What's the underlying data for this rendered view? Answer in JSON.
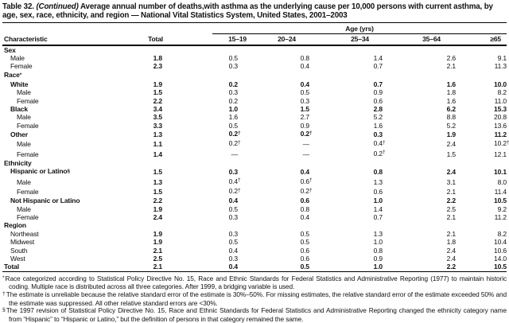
{
  "title": {
    "prefix": "Table 32.",
    "continued": "(Continued)",
    "text": "Average annual number of deaths,with asthma as the underlying cause per 10,000 persons with current asthma, by age, sex, race, ethnicity, and region — National Vital Statistics System, United States, 2001–2003"
  },
  "table": {
    "header": {
      "characteristic": "Characteristic",
      "total": "Total",
      "age_span": "Age (yrs)",
      "ages": [
        "15–19",
        "20–24",
        "25–34",
        "35–64",
        "≥65"
      ]
    },
    "rows": [
      {
        "label": "Sex",
        "indent": 0,
        "section": true
      },
      {
        "label": "Male",
        "indent": 1,
        "values": [
          "1.8",
          "0.5",
          "0.8",
          "1.4",
          "2.6",
          "9.1"
        ]
      },
      {
        "label": "Female",
        "indent": 1,
        "values": [
          "2.3",
          "0.3",
          "0.4",
          "0.7",
          "2.1",
          "11.3"
        ]
      },
      {
        "label": "Race",
        "sup": "*",
        "indent": 0,
        "section": true
      },
      {
        "label": "White",
        "indent": 1,
        "bold": true,
        "values": [
          "1.9",
          "0.2",
          "0.4",
          "0.7",
          "1.6",
          "10.0"
        ]
      },
      {
        "label": "Male",
        "indent": 2,
        "values": [
          "1.5",
          "0.3",
          "0.5",
          "0.9",
          "1.8",
          "8.2"
        ]
      },
      {
        "label": "Female",
        "indent": 2,
        "values": [
          "2.2",
          "0.2",
          "0.3",
          "0.6",
          "1.6",
          "11.0"
        ]
      },
      {
        "label": "Black",
        "indent": 1,
        "bold": true,
        "values": [
          "3.4",
          "1.0",
          "1.5",
          "2.8",
          "6.2",
          "15.3"
        ]
      },
      {
        "label": "Male",
        "indent": 2,
        "values": [
          "3.5",
          "1.6",
          "2.7",
          "5.2",
          "8.8",
          "20.8"
        ]
      },
      {
        "label": "Female",
        "indent": 2,
        "values": [
          "3.3",
          "0.5",
          "0.9",
          "1.6",
          "5.2",
          "13.6"
        ]
      },
      {
        "label": "Other",
        "indent": 1,
        "bold": true,
        "values": [
          "1.3",
          "0.2†",
          "0.2†",
          "0.3",
          "1.9",
          "11.2"
        ]
      },
      {
        "label": "Male",
        "indent": 2,
        "values": [
          "1.1",
          "0.2†",
          "—",
          "0.4†",
          "2.4",
          "10.2†"
        ]
      },
      {
        "label": "Female",
        "indent": 2,
        "values": [
          "1.4",
          "—",
          "—",
          "0.2†",
          "1.5",
          "12.1"
        ]
      },
      {
        "label": "Ethnicity",
        "indent": 0,
        "section": true
      },
      {
        "label": "Hispanic or Latino",
        "sup": "§",
        "indent": 1,
        "bold": true,
        "values": [
          "1.5",
          "0.3",
          "0.4",
          "0.8",
          "2.4",
          "10.1"
        ]
      },
      {
        "label": "Male",
        "indent": 2,
        "values": [
          "1.3",
          "0.4†",
          "0.6†",
          "1.3",
          "3.1",
          "8.0"
        ]
      },
      {
        "label": "Female",
        "indent": 2,
        "values": [
          "1.5",
          "0.2†",
          "0.2†",
          "0.6",
          "2.1",
          "11.4"
        ]
      },
      {
        "label": "Not Hispanic or Latino",
        "indent": 1,
        "bold": true,
        "values": [
          "2.2",
          "0.4",
          "0.6",
          "1.0",
          "2.2",
          "10.5"
        ]
      },
      {
        "label": "Male",
        "indent": 2,
        "values": [
          "1.9",
          "0.5",
          "0.8",
          "1.4",
          "2.5",
          "9.2"
        ]
      },
      {
        "label": "Female",
        "indent": 2,
        "values": [
          "2.4",
          "0.3",
          "0.4",
          "0.7",
          "2.1",
          "11.2"
        ]
      },
      {
        "label": "Region",
        "indent": 0,
        "section": true
      },
      {
        "label": "Northeast",
        "indent": 1,
        "values": [
          "1.9",
          "0.3",
          "0.5",
          "1.3",
          "2.1",
          "8.2"
        ]
      },
      {
        "label": "Midwest",
        "indent": 1,
        "values": [
          "1.9",
          "0.5",
          "0.5",
          "1.0",
          "1.8",
          "10.4"
        ]
      },
      {
        "label": "South",
        "indent": 1,
        "values": [
          "2.1",
          "0.4",
          "0.6",
          "0.8",
          "2.4",
          "10.6"
        ]
      },
      {
        "label": "West",
        "indent": 1,
        "values": [
          "2.5",
          "0.3",
          "0.6",
          "0.9",
          "2.4",
          "14.0"
        ]
      },
      {
        "label": "Total",
        "indent": 0,
        "bold": true,
        "values": [
          "2.1",
          "0.4",
          "0.5",
          "1.0",
          "2.2",
          "10.5"
        ]
      }
    ]
  },
  "footnotes": [
    {
      "marker": "*",
      "text": "Race categorized according to Statistical Policy Directive No. 15, Race and Ethnic Standards for Federal Statistics and Administrative Reporting (1977) to maintain historic coding. Multiple race is distributed across all three categories. After 1999, a bridging variable is used."
    },
    {
      "marker": "†",
      "text": "The estimate is unreliable because the relative standard error of the estimate is 30%–50%. For missing estimates, the relative standard error of the estimate exceeded 50% and the estimate was suppressed. All other relative standard errors are <30%."
    },
    {
      "marker": "§",
      "text": "The 1997 revision of Statistical Policy Directive No. 15, Race and Ethnic Standards for Federal Statistics and Administrative Reporting changed the ethnicity category name from “Hispanic” to “Hispanic or Latino,” but the definition of persons in that category remained the same."
    }
  ],
  "colors": {
    "text": "#111111",
    "rule": "#000000",
    "background": "#ffffff"
  }
}
